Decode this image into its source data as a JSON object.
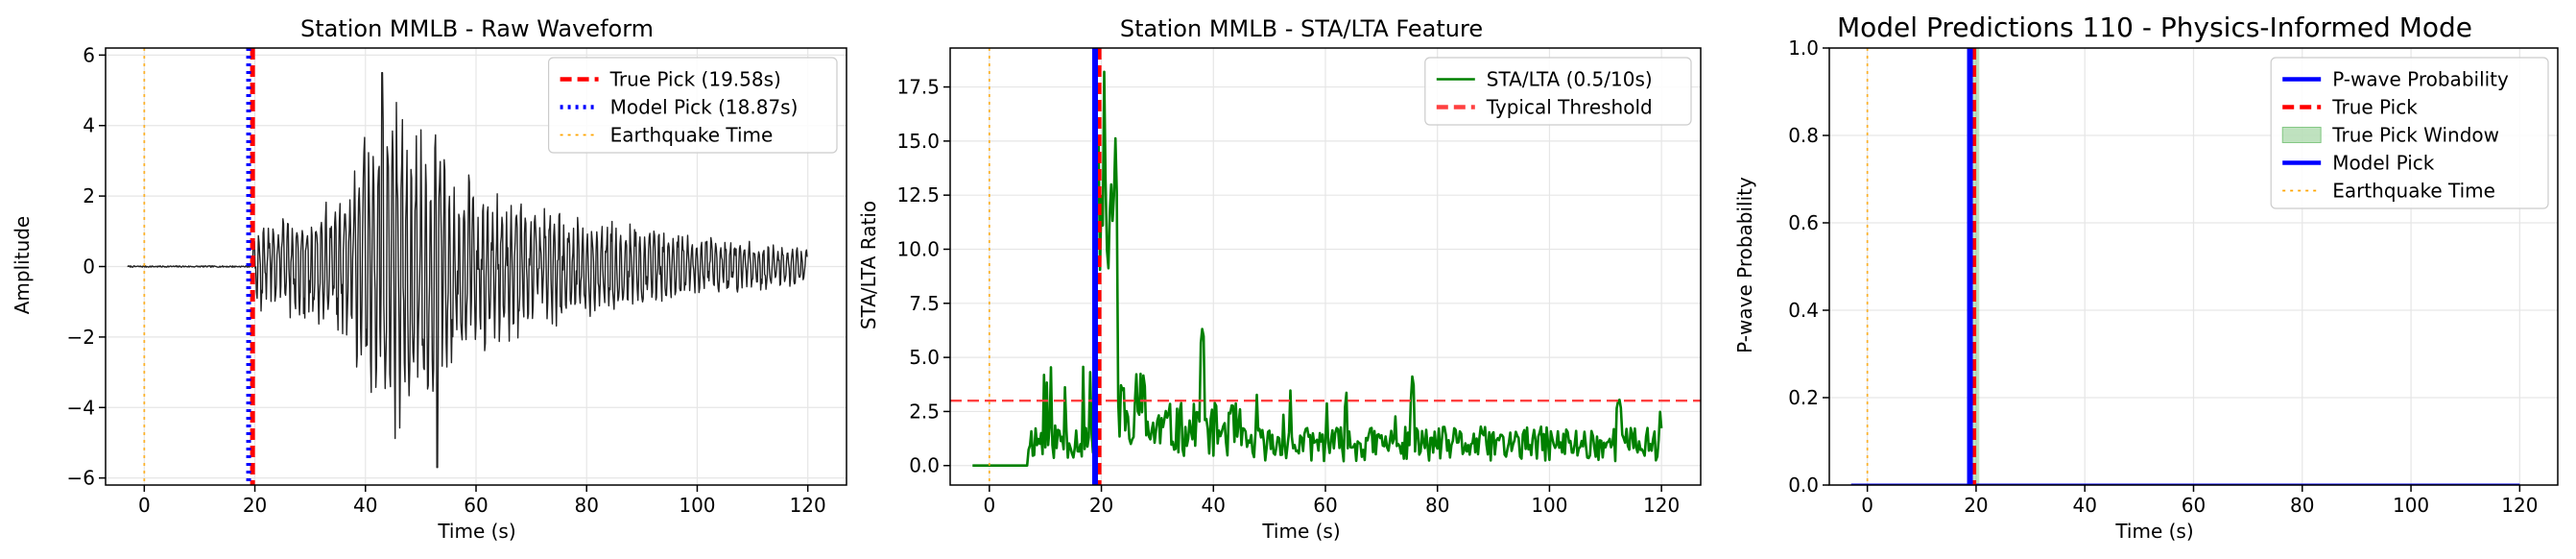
{
  "chart_data": [
    {
      "type": "line",
      "title": "Station MMLB - Raw Waveform",
      "xlabel": "Time (s)",
      "ylabel": "Amplitude",
      "xlim": [
        -7,
        127
      ],
      "ylim": [
        -6.2,
        6.2
      ],
      "xticks": [
        0,
        20,
        40,
        60,
        80,
        100,
        120
      ],
      "yticks": [
        -6,
        -4,
        -2,
        0,
        2,
        4,
        6
      ],
      "grid": true,
      "legend_position": "top-right",
      "series": [
        {
          "name": "",
          "color": "#222222",
          "kind": "waveform",
          "x_range": [
            -3,
            120
          ],
          "onset": 19.6,
          "peak_time": 43,
          "peak_amplitude": 5.5,
          "min_amplitude": -5.7
        }
      ],
      "vlines": [
        {
          "name": "True Pick (19.58s)",
          "x": 19.58,
          "color": "#ff0000",
          "style": "dashed"
        },
        {
          "name": "Model Pick (18.87s)",
          "x": 18.87,
          "color": "#0000ff",
          "style": "dotted"
        },
        {
          "name": "Earthquake Time",
          "x": 0,
          "color": "#ffa500",
          "style": "dotted"
        }
      ],
      "hlines": [],
      "legend": [
        "True Pick (19.58s)",
        "Model Pick (18.87s)",
        "Earthquake Time"
      ]
    },
    {
      "type": "line",
      "title": "Station MMLB - STA/LTA Feature",
      "xlabel": "Time (s)",
      "ylabel": "STA/LTA Ratio",
      "xlim": [
        -7,
        127
      ],
      "ylim": [
        -0.9,
        19.3
      ],
      "xticks": [
        0,
        20,
        40,
        60,
        80,
        100,
        120
      ],
      "yticks": [
        "0.0",
        "2.5",
        "5.0",
        "7.5",
        "10.0",
        "12.5",
        "15.0",
        "17.5"
      ],
      "grid": true,
      "legend_position": "top-right",
      "series": [
        {
          "name": "STA/LTA (0.5/10s)",
          "color": "#008000",
          "kind": "stalta",
          "x_range": [
            -3,
            120
          ],
          "peak_time": 20.5,
          "peak_value": 18.2
        }
      ],
      "vlines": [
        {
          "name": "True Pick",
          "x": 19.58,
          "color": "#ff0000",
          "style": "dashed"
        },
        {
          "name": "Model Pick",
          "x": 18.87,
          "color": "#0000ff",
          "style": "solid"
        },
        {
          "name": "Earthquake Time",
          "x": 0,
          "color": "#ffa500",
          "style": "dotted"
        }
      ],
      "hlines": [
        {
          "name": "Typical Threshold",
          "y": 3.0,
          "color": "#ff4040",
          "style": "dashed"
        }
      ],
      "legend": [
        "STA/LTA (0.5/10s)",
        "Typical Threshold"
      ]
    },
    {
      "type": "line",
      "title": "Model Predictions 110 - Physics-Informed Mode",
      "xlabel": "Time (s)",
      "ylabel": "P-wave Probability",
      "xlim": [
        -7,
        127
      ],
      "ylim": [
        0,
        1
      ],
      "xticks": [
        0,
        20,
        40,
        60,
        80,
        100,
        120
      ],
      "yticks": [
        "0.0",
        "0.2",
        "0.4",
        "0.6",
        "0.8",
        "1.0"
      ],
      "grid": true,
      "legend_position": "top-right",
      "series": [
        {
          "name": "P-wave Probability",
          "color": "#0000ff",
          "kind": "flat",
          "x": [
            -3,
            120
          ],
          "y": [
            0,
            0
          ]
        }
      ],
      "spans": [
        {
          "name": "True Pick Window",
          "x0": 18.6,
          "x1": 20.6,
          "color": "#2ca02c"
        }
      ],
      "vlines": [
        {
          "name": "True Pick",
          "x": 19.58,
          "color": "#ff0000",
          "style": "dashed"
        },
        {
          "name": "Model Pick",
          "x": 18.87,
          "color": "#0000ff",
          "style": "solid"
        },
        {
          "name": "Earthquake Time",
          "x": 0,
          "color": "#ffa500",
          "style": "dotted"
        }
      ],
      "hlines": [],
      "legend": [
        "P-wave Probability",
        "True Pick",
        "True Pick Window",
        "Model Pick",
        "Earthquake Time"
      ]
    }
  ]
}
